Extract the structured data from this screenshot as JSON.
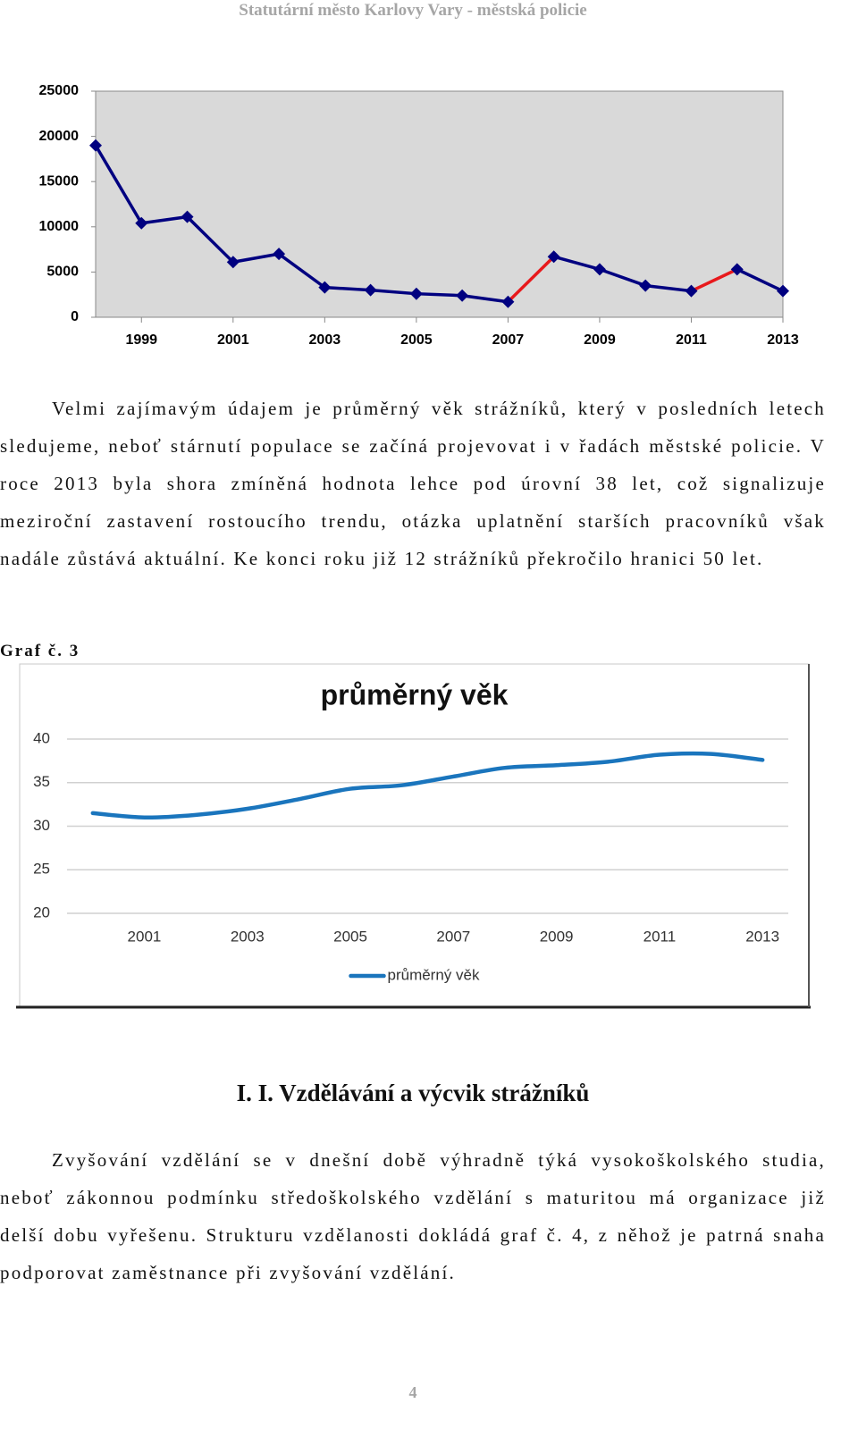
{
  "header": "Statutární město Karlovy Vary - městská policie",
  "chart_data": [
    {
      "type": "line",
      "x": [
        1998,
        1999,
        2000,
        2001,
        2002,
        2003,
        2004,
        2005,
        2006,
        2007,
        2008,
        2009,
        2010,
        2011,
        2012,
        2013
      ],
      "values": [
        19000,
        10400,
        11100,
        6100,
        7000,
        3300,
        3000,
        2600,
        2400,
        1700,
        6700,
        5300,
        3500,
        2900,
        5300,
        2900
      ],
      "color": "#000080",
      "segment_colors": [
        "#000080",
        "#000080",
        "#000080",
        "#000080",
        "#000080",
        "#000080",
        "#000080",
        "#000080",
        "#000080",
        "#e8191c",
        "#000080",
        "#000080",
        "#000080",
        "#e8191c",
        "#000080"
      ],
      "marker": "diamond",
      "background": "#d9d9d9",
      "xlim": [
        1998,
        2013
      ],
      "xticks": [
        1999,
        2001,
        2003,
        2005,
        2007,
        2009,
        2011,
        2013
      ],
      "ylim": [
        0,
        25000
      ],
      "yticks": [
        0,
        5000,
        10000,
        15000,
        20000,
        25000
      ],
      "grid": false
    },
    {
      "type": "line",
      "label": "Graf č. 3",
      "title": "průměrný věk",
      "x": [
        2000,
        2001,
        2002,
        2003,
        2004,
        2005,
        2006,
        2007,
        2008,
        2009,
        2010,
        2011,
        2012,
        2013
      ],
      "series": [
        {
          "name": "průměrný věk",
          "color": "#1a75bd",
          "values": [
            31.5,
            31.0,
            31.3,
            32.0,
            33.1,
            34.3,
            34.7,
            35.7,
            36.7,
            37.0,
            37.4,
            38.2,
            38.3,
            37.6
          ]
        }
      ],
      "smooth": true,
      "xlim": [
        1999.5,
        2013.5
      ],
      "xticks": [
        2001,
        2003,
        2005,
        2007,
        2009,
        2011,
        2013
      ],
      "ylim": [
        20,
        40
      ],
      "yticks": [
        20,
        25,
        30,
        35,
        40
      ],
      "grid": true,
      "legend": "bottom"
    }
  ],
  "paragraphs": [
    "Velmi zajímavým údajem je průměrný věk strážníků, který v posledních letech sledujeme, neboť stárnutí populace se začíná projevovat i v řadách městské policie. V roce 2013 byla shora zmíněná hodnota lehce pod úrovní 38 let, což signalizuje meziroční zastavení rostoucího trendu, otázka uplatnění starších pracovníků však nadále zůstává aktuální. Ke konci roku již 12 strážníků překročilo hranici 50 let.",
    "Zvyšování vzdělání se v dnešní době výhradně týká vysokoškolského studia, neboť zákonnou podmínku středoškolského vzdělání s maturitou má organizace již delší dobu vyřešenu. Strukturu vzdělanosti dokládá graf č. 4, z něhož je patrná snaha podporovat zaměstnance při zvyšování vzdělání."
  ],
  "heading": "I. I. Vzdělávání a výcvik strážníků",
  "page_number": "4"
}
